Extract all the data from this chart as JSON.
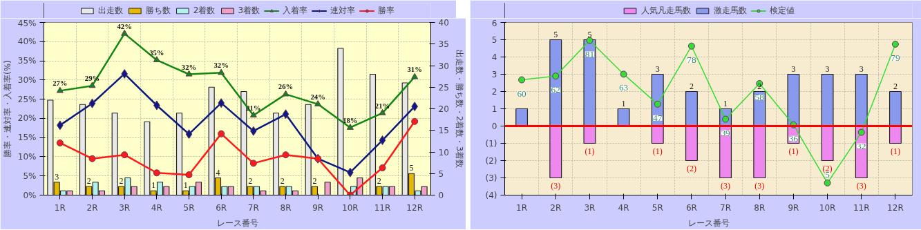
{
  "chart_data": [
    {
      "type": "bar",
      "categories": [
        "1R",
        "2R",
        "3R",
        "4R",
        "5R",
        "6R",
        "7R",
        "8R",
        "9R",
        "10R",
        "11R",
        "12R"
      ],
      "xlabel": "レース番号",
      "ylabel": "勝率・連対率・入着率(%)",
      "y2label": "出走数・勝ち数・2着数・3着数",
      "ylim": [
        0,
        45
      ],
      "yticks": [
        {
          "value": 0,
          "label": "0%"
        },
        {
          "value": 5,
          "label": "5%"
        },
        {
          "value": 10,
          "label": "10%"
        },
        {
          "value": 15,
          "label": "15%"
        },
        {
          "value": 20,
          "label": "20%"
        },
        {
          "value": 25,
          "label": "25%"
        },
        {
          "value": 30,
          "label": "30%"
        },
        {
          "value": 35,
          "label": "35%"
        },
        {
          "value": 40,
          "label": "40%"
        },
        {
          "value": 45,
          "label": "45%"
        }
      ],
      "y2lim": [
        0,
        40
      ],
      "y2ticks": [
        0,
        5,
        10,
        15,
        20,
        25,
        30,
        35,
        40
      ],
      "grid": true,
      "legend": "top",
      "series": [
        {
          "name": "出走数",
          "axis": "y2",
          "color": "#e8e8e8",
          "values": [
            22,
            21,
            19,
            17,
            19,
            25,
            24,
            19,
            21,
            34,
            28,
            26
          ]
        },
        {
          "name": "勝ち数",
          "axis": "y2",
          "color": "#e6b800",
          "values": [
            3,
            2,
            2,
            1,
            1,
            4,
            2,
            2,
            2,
            0,
            2,
            5
          ],
          "value_labels": [
            "3",
            "2",
            "2",
            "1",
            "1",
            "4",
            "2",
            "2",
            "2",
            null,
            "2",
            "5"
          ]
        },
        {
          "name": "2着数",
          "axis": "y2",
          "color": "#b3f0f0",
          "values": [
            1,
            3,
            4,
            3,
            2,
            2,
            2,
            2,
            0,
            2,
            2,
            1
          ]
        },
        {
          "name": "3着数",
          "axis": "y2",
          "color": "#f09fc8",
          "values": [
            1,
            1,
            2,
            2,
            3,
            2,
            1,
            1,
            3,
            4,
            2,
            2
          ]
        },
        {
          "name": "入着率",
          "type": "line",
          "color": "#118811",
          "marker": "triangle",
          "values": [
            27.2,
            28.5,
            42.1,
            35.2,
            31.5,
            31.9,
            20.8,
            26.3,
            23.7,
            17.6,
            21.4,
            30.8
          ],
          "value_labels": [
            "27%",
            "29%",
            "42%",
            "35%",
            "32%",
            "32%",
            "21%",
            "26%",
            "24%",
            "18%",
            "21%",
            "31%"
          ]
        },
        {
          "name": "連対率",
          "type": "line",
          "color": "#0a1a80",
          "marker": "diamond",
          "values": [
            18.2,
            23.9,
            31.6,
            23.4,
            15.9,
            24.0,
            16.7,
            21.1,
            9.5,
            5.9,
            14.3,
            23.1
          ]
        },
        {
          "name": "勝率",
          "type": "line",
          "color": "#ff1a1a",
          "marker": "circle",
          "values": [
            13.6,
            9.5,
            10.5,
            5.8,
            5.3,
            16.0,
            8.3,
            10.5,
            9.5,
            0,
            7.1,
            19.2
          ]
        }
      ]
    },
    {
      "type": "bar",
      "stacked": true,
      "categories": [
        "1R",
        "2R",
        "3R",
        "4R",
        "5R",
        "6R",
        "7R",
        "8R",
        "9R",
        "10R",
        "11R",
        "12R"
      ],
      "xlabel": "レース番号",
      "ylim": [
        -4,
        6
      ],
      "yticks": [
        {
          "value": -4,
          "label": "(4)"
        },
        {
          "value": -3,
          "label": "(3)"
        },
        {
          "value": -2,
          "label": "(2)"
        },
        {
          "value": -1,
          "label": "(1)"
        },
        0,
        1,
        2,
        3,
        4,
        5,
        6
      ],
      "y2lim": [
        -1.5,
        90.6
      ],
      "grid": true,
      "legend": "top",
      "ref_lines": [
        {
          "axis": "y",
          "value": 0,
          "color": "#ff0000"
        }
      ],
      "series": [
        {
          "name": "人気凡走馬数",
          "color": "#ee88ee",
          "values": [
            null,
            -3,
            -1,
            null,
            -1,
            -2,
            -3,
            -3,
            -1,
            -2,
            -3,
            -1
          ],
          "value_labels": [
            null,
            "(3)",
            "(1)",
            null,
            "(1)",
            "(2)",
            "(3)",
            "(3)",
            "(1)",
            "(2)",
            "(3)",
            "(1)"
          ]
        },
        {
          "name": "激走馬数",
          "color": "#8899ee",
          "values": [
            1,
            5,
            5,
            1,
            3,
            2,
            1,
            2,
            3,
            3,
            3,
            2
          ],
          "value_labels": [
            null,
            "5",
            "5",
            "1",
            "3",
            "2",
            "1",
            "2",
            "3",
            "3",
            "3",
            "2"
          ]
        },
        {
          "name": "検定値",
          "type": "line",
          "axis": "y2",
          "color": "#33dd33",
          "marker": "circle",
          "values": [
            60,
            62,
            81,
            63,
            47,
            78,
            39,
            58,
            36,
            5,
            32,
            79
          ],
          "value_labels": [
            "60",
            "62",
            "81",
            "63",
            "47",
            "78",
            "39",
            "58",
            "36",
            "5",
            "32",
            "79"
          ]
        }
      ]
    }
  ]
}
